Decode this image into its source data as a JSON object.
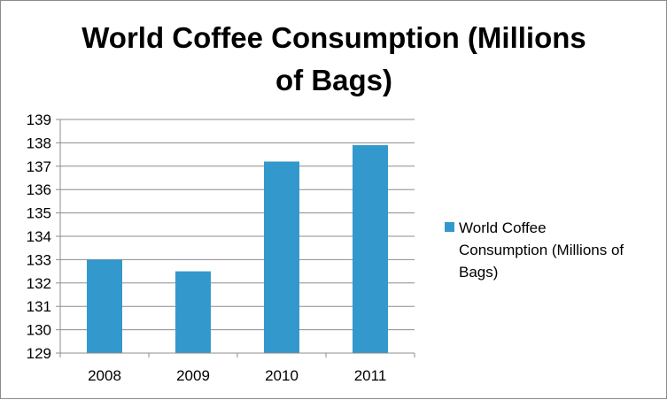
{
  "chart_data": {
    "type": "bar",
    "title": "World Coffee Consumption (Millions of Bags)",
    "title_lines": [
      "World Coffee Consumption (Millions",
      "of Bags)"
    ],
    "categories": [
      "2008",
      "2009",
      "2010",
      "2011"
    ],
    "series": [
      {
        "name": "World Coffee Consumption (Millions of Bags)",
        "values": [
          133.0,
          132.5,
          137.2,
          137.9
        ],
        "color": "#3399CC"
      }
    ],
    "ylim": [
      129,
      139
    ],
    "yticks": [
      "129",
      "130",
      "131",
      "132",
      "133",
      "134",
      "135",
      "136",
      "137",
      "138",
      "139"
    ],
    "xlabel": "",
    "ylabel": "",
    "grid": true,
    "legend": {
      "position": "right",
      "lines": [
        "World Coffee",
        "Consumption (Millions of",
        "Bags)"
      ]
    }
  }
}
